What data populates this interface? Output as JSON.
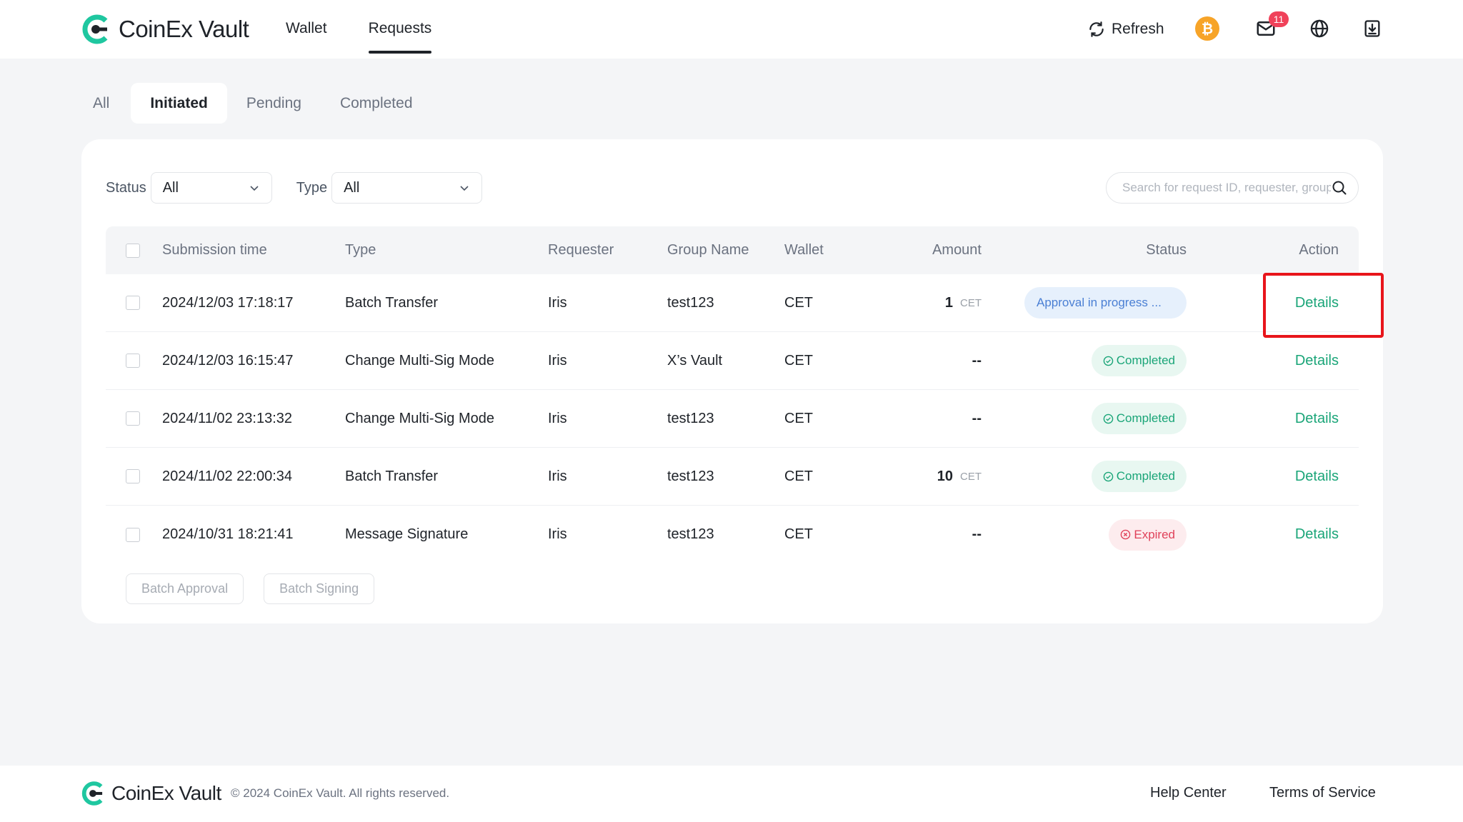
{
  "brand": {
    "name": "CoinEx Vault",
    "accent": "#1aa578"
  },
  "nav": {
    "items": [
      "Wallet",
      "Requests"
    ],
    "active": "Requests"
  },
  "header": {
    "refresh_label": "Refresh",
    "mail_badge": "11"
  },
  "tabs": [
    "All",
    "Initiated",
    "Pending",
    "Completed"
  ],
  "filters": {
    "status_label": "Status",
    "status_value": "All",
    "type_label": "Type",
    "type_value": "All",
    "search_placeholder": "Search for request ID, requester, group name"
  },
  "table": {
    "headers": [
      "Submission time",
      "Type",
      "Requester",
      "Group Name",
      "Wallet",
      "Amount",
      "Status",
      "Action"
    ],
    "rows": [
      {
        "time": "2024/12/03 17:18:17",
        "type": "Batch Transfer",
        "requester": "Iris",
        "group": "test123",
        "wallet": "CET",
        "amount": "1",
        "unit": "CET",
        "status": "Approval in progress ...",
        "status_kind": "progress",
        "action": "Details"
      },
      {
        "time": "2024/12/03 16:15:47",
        "type": "Change Multi-Sig Mode",
        "requester": "Iris",
        "group": "X’s Vault",
        "wallet": "CET",
        "amount": "--",
        "unit": "",
        "status": "Completed",
        "status_kind": "completed",
        "action": "Details"
      },
      {
        "time": "2024/11/02 23:13:32",
        "type": "Change Multi-Sig Mode",
        "requester": "Iris",
        "group": "test123",
        "wallet": "CET",
        "amount": "--",
        "unit": "",
        "status": "Completed",
        "status_kind": "completed",
        "action": "Details"
      },
      {
        "time": "2024/11/02 22:00:34",
        "type": "Batch Transfer",
        "requester": "Iris",
        "group": "test123",
        "wallet": "CET",
        "amount": "10",
        "unit": "CET",
        "status": "Completed",
        "status_kind": "completed",
        "action": "Details"
      },
      {
        "time": "2024/10/31 18:21:41",
        "type": "Message Signature",
        "requester": "Iris",
        "group": "test123",
        "wallet": "CET",
        "amount": "--",
        "unit": "",
        "status": "Expired",
        "status_kind": "expired",
        "action": "Details"
      }
    ]
  },
  "bulk_actions": {
    "approve": "Batch Approval",
    "sign": "Batch Signing"
  },
  "footer": {
    "copyright": "© 2024 CoinEx Vault. All rights reserved.",
    "help": "Help Center",
    "terms": "Terms of Service"
  }
}
